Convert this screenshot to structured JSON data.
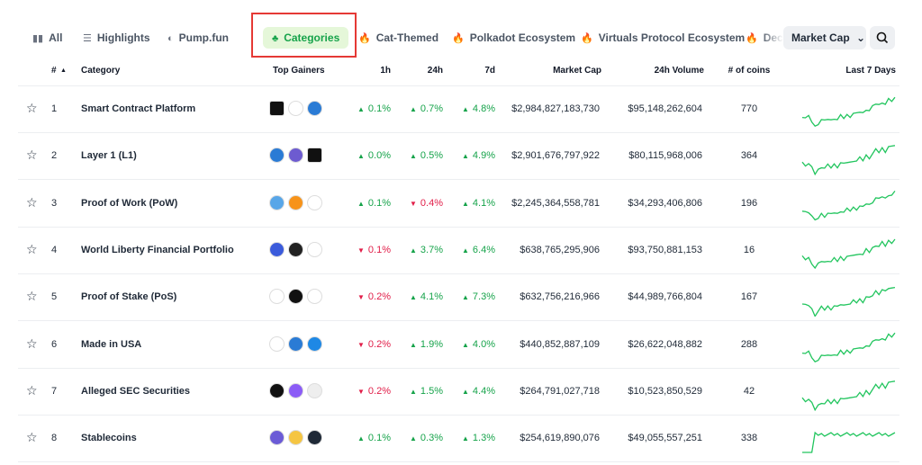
{
  "tabs": [
    "All",
    "Highlights",
    "Pump.fun",
    "Categories",
    "Cat-Themed",
    "Polkadot Ecosystem",
    "Virtuals Protocol Ecosystem",
    "Dece"
  ],
  "sort_select": "Market Cap",
  "table": {
    "headers": [
      "#",
      "Category",
      "Top Gainers",
      "1h",
      "24h",
      "7d",
      "Market Cap",
      "24h Volume",
      "# of coins",
      "Last 7 Days"
    ],
    "rows": [
      {
        "rank": "1",
        "category": "Smart Contract Platform",
        "h1": "0.1%",
        "h1_dir": "up",
        "h24": "0.7%",
        "h24_dir": "up",
        "d7": "4.8%",
        "d7_dir": "up",
        "market_cap": "$2,984,827,183,730",
        "volume": "$95,148,262,604",
        "coins": "770"
      },
      {
        "rank": "2",
        "category": "Layer 1 (L1)",
        "h1": "0.0%",
        "h1_dir": "up",
        "h24": "0.5%",
        "h24_dir": "up",
        "d7": "4.9%",
        "d7_dir": "up",
        "market_cap": "$2,901,676,797,922",
        "volume": "$80,115,968,006",
        "coins": "364"
      },
      {
        "rank": "3",
        "category": "Proof of Work (PoW)",
        "h1": "0.1%",
        "h1_dir": "up",
        "h24": "0.4%",
        "h24_dir": "down",
        "d7": "4.1%",
        "d7_dir": "up",
        "market_cap": "$2,245,364,558,781",
        "volume": "$34,293,406,806",
        "coins": "196"
      },
      {
        "rank": "4",
        "category": "World Liberty Financial Portfolio",
        "h1": "0.1%",
        "h1_dir": "down",
        "h24": "3.7%",
        "h24_dir": "up",
        "d7": "6.4%",
        "d7_dir": "up",
        "market_cap": "$638,765,295,906",
        "volume": "$93,750,881,153",
        "coins": "16"
      },
      {
        "rank": "5",
        "category": "Proof of Stake (PoS)",
        "h1": "0.2%",
        "h1_dir": "down",
        "h24": "4.1%",
        "h24_dir": "up",
        "d7": "7.3%",
        "d7_dir": "up",
        "market_cap": "$632,756,216,966",
        "volume": "$44,989,766,804",
        "coins": "167"
      },
      {
        "rank": "6",
        "category": "Made in USA",
        "h1": "0.2%",
        "h1_dir": "down",
        "h24": "1.9%",
        "h24_dir": "up",
        "d7": "4.0%",
        "d7_dir": "up",
        "market_cap": "$440,852,887,109",
        "volume": "$26,622,048,882",
        "coins": "288"
      },
      {
        "rank": "7",
        "category": "Alleged SEC Securities",
        "h1": "0.2%",
        "h1_dir": "down",
        "h24": "1.5%",
        "h24_dir": "up",
        "d7": "4.4%",
        "d7_dir": "up",
        "market_cap": "$264,791,027,718",
        "volume": "$10,523,850,529",
        "coins": "42"
      },
      {
        "rank": "8",
        "category": "Stablecoins",
        "h1": "0.1%",
        "h1_dir": "up",
        "h24": "0.3%",
        "h24_dir": "up",
        "d7": "1.3%",
        "d7_dir": "up",
        "market_cap": "$254,619,890,076",
        "volume": "$49,055,557,251",
        "coins": "338"
      }
    ]
  }
}
